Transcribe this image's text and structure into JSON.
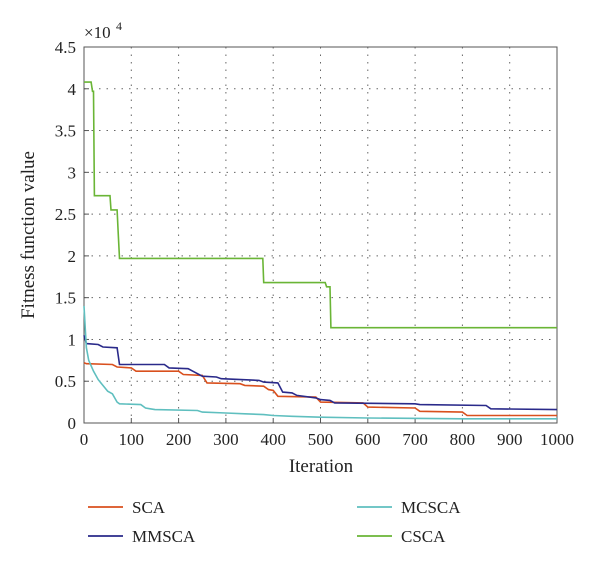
{
  "chart_data": {
    "type": "line",
    "title": "",
    "xlabel": "Iteration",
    "ylabel": "Fitness function value",
    "y_multiplier_label": "×10",
    "y_multiplier_exponent": "4",
    "xlim": [
      0,
      1000
    ],
    "ylim": [
      0,
      4.5
    ],
    "xticks": [
      0,
      100,
      200,
      300,
      400,
      500,
      600,
      700,
      800,
      900,
      1000
    ],
    "yticks": [
      0,
      0.5,
      1,
      1.5,
      2,
      2.5,
      3,
      3.5,
      4,
      4.5
    ],
    "ytick_labels": [
      "0",
      "0.5",
      "1",
      "1.5",
      "2",
      "2.5",
      "3",
      "3.5",
      "4",
      "4.5"
    ],
    "grid": true,
    "legend_position": "bottom",
    "series": [
      {
        "name": "SCA",
        "color": "#d9501e",
        "points": [
          [
            0,
            0.72
          ],
          [
            5,
            0.71
          ],
          [
            60,
            0.7
          ],
          [
            70,
            0.67
          ],
          [
            100,
            0.66
          ],
          [
            110,
            0.62
          ],
          [
            200,
            0.62
          ],
          [
            210,
            0.58
          ],
          [
            250,
            0.57
          ],
          [
            260,
            0.48
          ],
          [
            330,
            0.47
          ],
          [
            340,
            0.45
          ],
          [
            380,
            0.44
          ],
          [
            390,
            0.4
          ],
          [
            400,
            0.39
          ],
          [
            410,
            0.32
          ],
          [
            490,
            0.31
          ],
          [
            500,
            0.25
          ],
          [
            590,
            0.24
          ],
          [
            600,
            0.19
          ],
          [
            700,
            0.18
          ],
          [
            710,
            0.14
          ],
          [
            800,
            0.13
          ],
          [
            810,
            0.09
          ],
          [
            1000,
            0.09
          ]
        ]
      },
      {
        "name": "MMSCA",
        "color": "#2a2a8a",
        "points": [
          [
            0,
            1.05
          ],
          [
            5,
            0.95
          ],
          [
            30,
            0.94
          ],
          [
            40,
            0.91
          ],
          [
            70,
            0.9
          ],
          [
            75,
            0.7
          ],
          [
            170,
            0.7
          ],
          [
            180,
            0.66
          ],
          [
            220,
            0.65
          ],
          [
            230,
            0.62
          ],
          [
            250,
            0.56
          ],
          [
            280,
            0.55
          ],
          [
            290,
            0.53
          ],
          [
            370,
            0.51
          ],
          [
            380,
            0.49
          ],
          [
            410,
            0.48
          ],
          [
            420,
            0.37
          ],
          [
            440,
            0.36
          ],
          [
            450,
            0.33
          ],
          [
            490,
            0.3
          ],
          [
            500,
            0.28
          ],
          [
            520,
            0.27
          ],
          [
            530,
            0.24
          ],
          [
            700,
            0.23
          ],
          [
            710,
            0.22
          ],
          [
            850,
            0.21
          ],
          [
            860,
            0.17
          ],
          [
            1000,
            0.16
          ]
        ]
      },
      {
        "name": "MCSCA",
        "color": "#5fbfbf",
        "points": [
          [
            0,
            1.4
          ],
          [
            3,
            1.1
          ],
          [
            5,
            0.9
          ],
          [
            10,
            0.75
          ],
          [
            20,
            0.62
          ],
          [
            30,
            0.52
          ],
          [
            40,
            0.45
          ],
          [
            50,
            0.38
          ],
          [
            60,
            0.35
          ],
          [
            65,
            0.3
          ],
          [
            70,
            0.25
          ],
          [
            75,
            0.23
          ],
          [
            120,
            0.22
          ],
          [
            130,
            0.18
          ],
          [
            140,
            0.17
          ],
          [
            150,
            0.16
          ],
          [
            240,
            0.15
          ],
          [
            250,
            0.13
          ],
          [
            300,
            0.12
          ],
          [
            340,
            0.11
          ],
          [
            380,
            0.1
          ],
          [
            400,
            0.09
          ],
          [
            440,
            0.08
          ],
          [
            500,
            0.07
          ],
          [
            600,
            0.06
          ],
          [
            800,
            0.05
          ],
          [
            1000,
            0.05
          ]
        ]
      },
      {
        "name": "CSCA",
        "color": "#6ab536",
        "points": [
          [
            0,
            4.08
          ],
          [
            15,
            4.08
          ],
          [
            18,
            3.97
          ],
          [
            20,
            3.97
          ],
          [
            22,
            2.72
          ],
          [
            55,
            2.72
          ],
          [
            57,
            2.55
          ],
          [
            70,
            2.55
          ],
          [
            72,
            2.3
          ],
          [
            75,
            1.97
          ],
          [
            378,
            1.97
          ],
          [
            380,
            1.68
          ],
          [
            510,
            1.68
          ],
          [
            513,
            1.63
          ],
          [
            520,
            1.63
          ],
          [
            522,
            1.14
          ],
          [
            1000,
            1.14
          ]
        ]
      }
    ]
  }
}
